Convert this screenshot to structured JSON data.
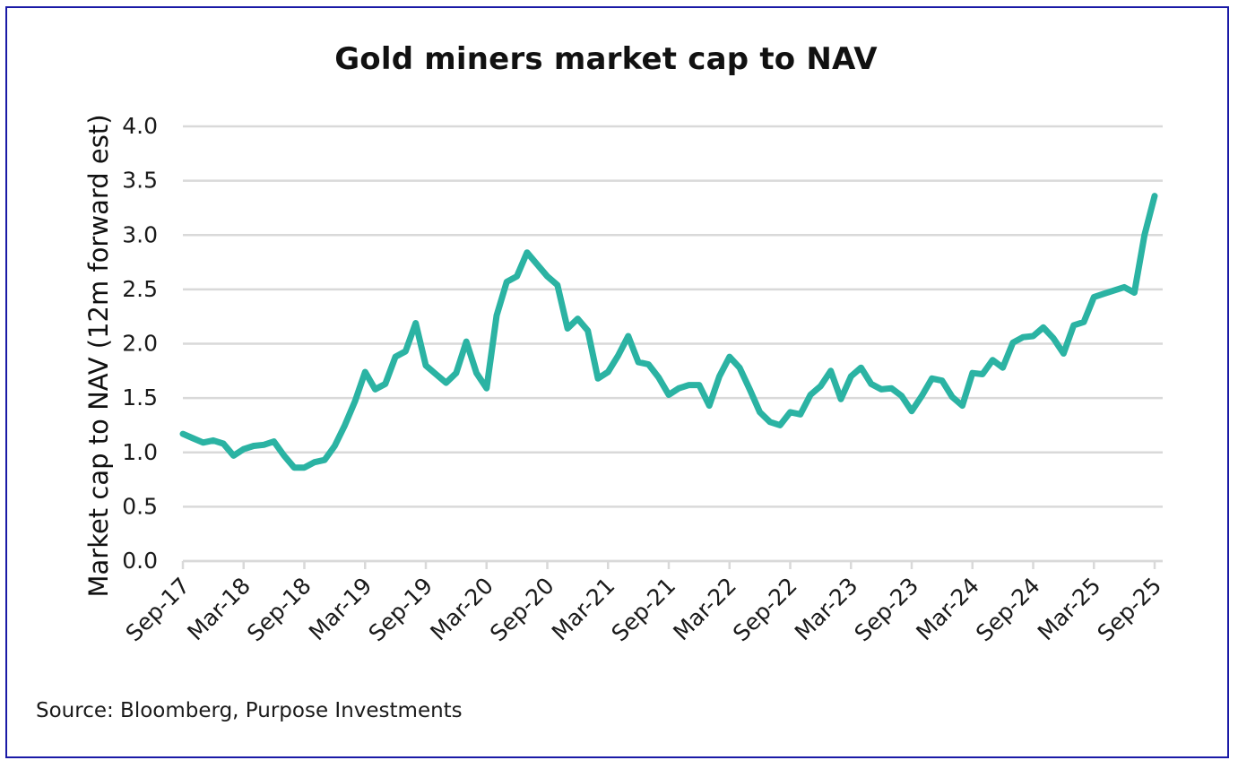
{
  "chart_data": {
    "type": "line",
    "title": "Gold miners market cap to NAV",
    "xlabel": "",
    "ylabel": "Market cap to NAV (12m forward est)",
    "ylim": [
      0.0,
      4.0
    ],
    "yticks": [
      "0.0",
      "0.5",
      "1.0",
      "1.5",
      "2.0",
      "2.5",
      "3.0",
      "3.5",
      "4.0"
    ],
    "ytick_values": [
      0.0,
      0.5,
      1.0,
      1.5,
      2.0,
      2.5,
      3.0,
      3.5,
      4.0
    ],
    "grid": true,
    "legend": "none",
    "frequency": "monthly",
    "x_start": "Sep-17",
    "x_end": "Sep-25",
    "xticks": [
      "Sep-17",
      "Mar-18",
      "Sep-18",
      "Mar-19",
      "Sep-19",
      "Mar-20",
      "Sep-20",
      "Mar-21",
      "Sep-21",
      "Mar-22",
      "Sep-22",
      "Mar-23",
      "Sep-23",
      "Mar-24",
      "Sep-24",
      "Mar-25",
      "Sep-25"
    ],
    "xtick_month_index": [
      0,
      6,
      12,
      18,
      24,
      30,
      36,
      42,
      48,
      54,
      60,
      66,
      72,
      78,
      84,
      90,
      96
    ],
    "series": [
      {
        "name": "Market cap to NAV",
        "color": "#2bb3a3",
        "values": [
          1.17,
          1.13,
          1.09,
          1.11,
          1.08,
          0.97,
          1.03,
          1.06,
          1.07,
          1.1,
          0.97,
          0.86,
          0.86,
          0.91,
          0.93,
          1.06,
          1.25,
          1.47,
          1.74,
          1.58,
          1.63,
          1.88,
          1.93,
          2.19,
          1.8,
          1.72,
          1.64,
          1.73,
          2.02,
          1.73,
          1.59,
          2.26,
          2.57,
          2.62,
          2.84,
          2.73,
          2.62,
          2.54,
          2.14,
          2.23,
          2.12,
          1.68,
          1.74,
          1.89,
          2.07,
          1.83,
          1.81,
          1.69,
          1.53,
          1.59,
          1.62,
          1.62,
          1.43,
          1.7,
          1.88,
          1.78,
          1.58,
          1.37,
          1.28,
          1.25,
          1.37,
          1.35,
          1.53,
          1.61,
          1.75,
          1.49,
          1.7,
          1.78,
          1.63,
          1.58,
          1.59,
          1.52,
          1.38,
          1.52,
          1.68,
          1.66,
          1.51,
          1.43,
          1.73,
          1.72,
          1.85,
          1.78,
          2.01,
          2.06,
          2.07,
          2.15,
          2.05,
          1.91,
          2.17,
          2.2,
          2.43,
          2.46,
          2.49,
          2.52,
          2.47,
          3.0,
          3.36
        ]
      }
    ]
  },
  "footer": {
    "source": "Source: Bloomberg, Purpose Investments"
  },
  "colors": {
    "line": "#2bb3a3",
    "grid": "#d9d9d9",
    "frame": "#1a1aa6",
    "text": "#111111"
  }
}
